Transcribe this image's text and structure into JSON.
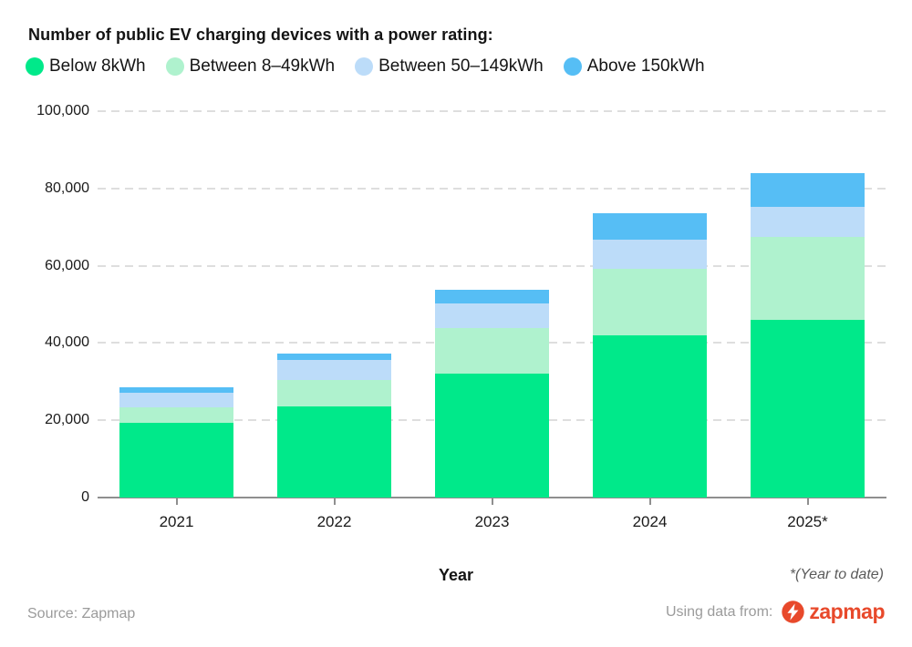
{
  "title": "Number of public EV charging devices with a power rating:",
  "legend": [
    {
      "label": "Below 8kWh",
      "color": "#00E98A"
    },
    {
      "label": "Between 8–49kWh",
      "color": "#AFF2CE"
    },
    {
      "label": "Between 50–149kWh",
      "color": "#BCDCF9"
    },
    {
      "label": "Above 150kWh",
      "color": "#56BEF5"
    }
  ],
  "chart_data": {
    "type": "bar",
    "stacked": true,
    "title": "Number of public EV charging devices with a power rating:",
    "categories": [
      "2021",
      "2022",
      "2023",
      "2024",
      "2025*"
    ],
    "series": [
      {
        "name": "Below 8kWh",
        "color": "#00E98A",
        "values": [
          19400,
          23700,
          32100,
          42000,
          46000
        ]
      },
      {
        "name": "Between 8–49kWh",
        "color": "#AFF2CE",
        "values": [
          3900,
          6700,
          11700,
          17300,
          21400
        ]
      },
      {
        "name": "Between 50–149kWh",
        "color": "#BCDCF9",
        "values": [
          3900,
          5300,
          6500,
          7400,
          7900
        ]
      },
      {
        "name": "Above 150kWh",
        "color": "#56BEF5",
        "values": [
          1400,
          1600,
          3400,
          6800,
          8700
        ]
      }
    ],
    "totals": [
      28600,
      37300,
      53700,
      73500,
      84000
    ],
    "xlabel": "Year",
    "ylabel": "",
    "ylim": [
      0,
      100000
    ],
    "yticks": [
      0,
      20000,
      40000,
      60000,
      80000,
      100000
    ],
    "ytick_labels": [
      "0",
      "20,000",
      "40,000",
      "60,000",
      "80,000",
      "100,000"
    ],
    "grid": "horizontal dashed",
    "legend_position": "top"
  },
  "footnote": "*(Year to date)",
  "footer": {
    "source": "Source: Zapmap",
    "attribution": "Using data from:",
    "logo_text": "zapmap"
  },
  "colors": {
    "grid": "#DEDEDE",
    "axis": "#8F8F8F",
    "text": "#141414",
    "muted": "#9B9B9B",
    "footnote": "#5A5A5A",
    "logo": "#E8492B"
  }
}
